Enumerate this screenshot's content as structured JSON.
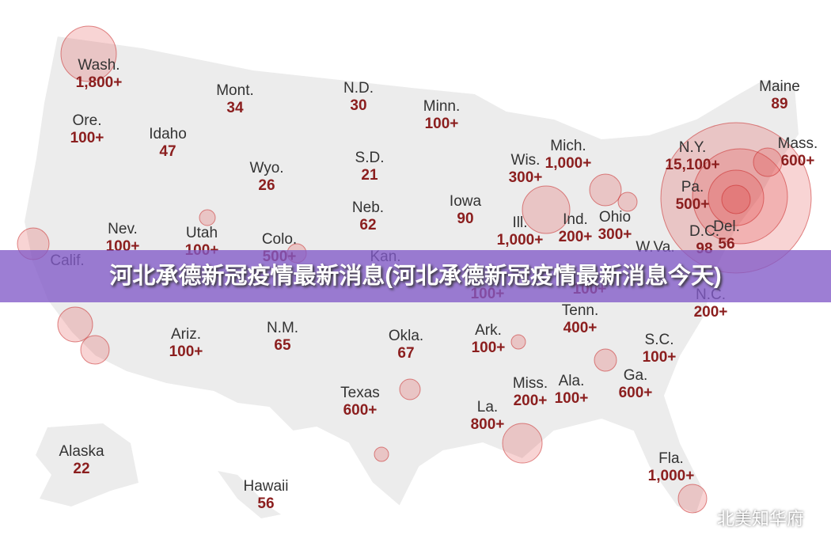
{
  "banner": {
    "title": "河北承德新冠疫情最新消息(河北承德新冠疫情最新消息今天)"
  },
  "watermark": "北美知华府",
  "labels": [
    {
      "name": "Wash.",
      "count": "1,800+"
    },
    {
      "name": "Ore.",
      "count": "100+"
    },
    {
      "name": "Mont.",
      "count": "34"
    },
    {
      "name": "Idaho",
      "count": "47"
    },
    {
      "name": "N.D.",
      "count": "30"
    },
    {
      "name": "Minn.",
      "count": "100+"
    },
    {
      "name": "Wyo.",
      "count": "26"
    },
    {
      "name": "S.D.",
      "count": "21"
    },
    {
      "name": "Neb.",
      "count": "62"
    },
    {
      "name": "Iowa",
      "count": "90"
    },
    {
      "name": "Wis.",
      "count": "300+"
    },
    {
      "name": "Mich.",
      "count": "1,000+"
    },
    {
      "name": "Ill.",
      "count": "1,000+"
    },
    {
      "name": "Ind.",
      "count": "200+"
    },
    {
      "name": "Ohio",
      "count": "300+"
    },
    {
      "name": "Maine",
      "count": "89"
    },
    {
      "name": "N.Y.",
      "count": "15,100+"
    },
    {
      "name": "Mass.",
      "count": "600+"
    },
    {
      "name": "Pa.",
      "count": "500+"
    },
    {
      "name": "D.C.",
      "count": "98"
    },
    {
      "name": "Del.",
      "count": "56"
    },
    {
      "name": "Nev.",
      "count": "100+"
    },
    {
      "name": "Utah",
      "count": "100+"
    },
    {
      "name": "Colo.",
      "count": "500+"
    },
    {
      "name": "Calif."
    },
    {
      "name": "Kan."
    },
    {
      "name": "W.Va."
    },
    {
      "count": "100+"
    },
    {
      "count": "100+"
    },
    {
      "name": "N.C.",
      "count": "200+"
    },
    {
      "name": "Ariz.",
      "count": "100+"
    },
    {
      "name": "N.M.",
      "count": "65"
    },
    {
      "name": "Okla.",
      "count": "67"
    },
    {
      "name": "Ark.",
      "count": "100+"
    },
    {
      "name": "Tenn.",
      "count": "400+"
    },
    {
      "name": "S.C.",
      "count": "100+"
    },
    {
      "name": "Texas",
      "count": "600+"
    },
    {
      "name": "Miss.",
      "count": "200+"
    },
    {
      "name": "Ala.",
      "count": "100+"
    },
    {
      "name": "Ga.",
      "count": "600+"
    },
    {
      "name": "La.",
      "count": "800+"
    },
    {
      "name": "Fla.",
      "count": "1,000+"
    },
    {
      "name": "Alaska",
      "count": "22"
    },
    {
      "name": "Hawaii",
      "count": "56"
    }
  ]
}
